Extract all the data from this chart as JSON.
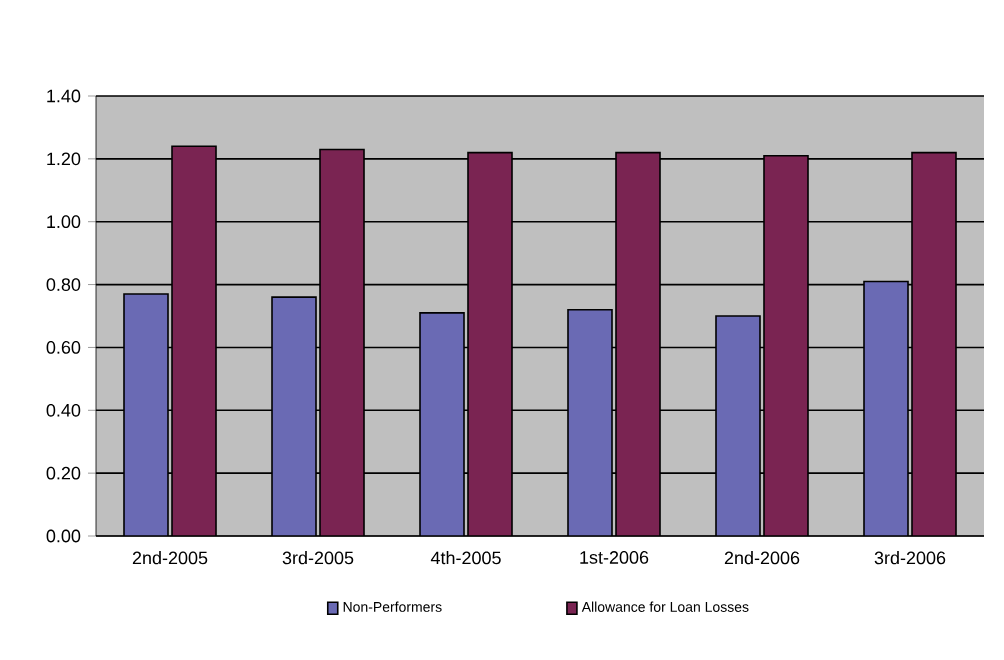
{
  "chart_data": {
    "type": "bar",
    "categories": [
      "2nd-2005",
      "3rd-2005",
      "4th-2005",
      "1st-2006",
      "2nd-2006",
      "3rd-2006"
    ],
    "series": [
      {
        "name": "Non-Performers",
        "color": "#6a6ab4",
        "values": [
          0.77,
          0.76,
          0.71,
          0.72,
          0.7,
          0.81
        ]
      },
      {
        "name": "Allowance for Loan Losses",
        "color": "#7a2452",
        "values": [
          1.24,
          1.23,
          1.22,
          1.22,
          1.21,
          1.22
        ]
      }
    ],
    "ylim": [
      0,
      1.4
    ],
    "yticks": [
      {
        "value": 0,
        "label": "0.00"
      },
      {
        "value": 0.2,
        "label": "0.20"
      },
      {
        "value": 0.4,
        "label": "0.40"
      },
      {
        "value": 0.6,
        "label": "0.60"
      },
      {
        "value": 0.8,
        "label": "0.80"
      },
      {
        "value": 1.0,
        "label": "1.00"
      },
      {
        "value": 1.2,
        "label": "1.20"
      },
      {
        "value": 1.4,
        "label": "1.40"
      }
    ],
    "grid": "y",
    "legend": "bottom"
  }
}
